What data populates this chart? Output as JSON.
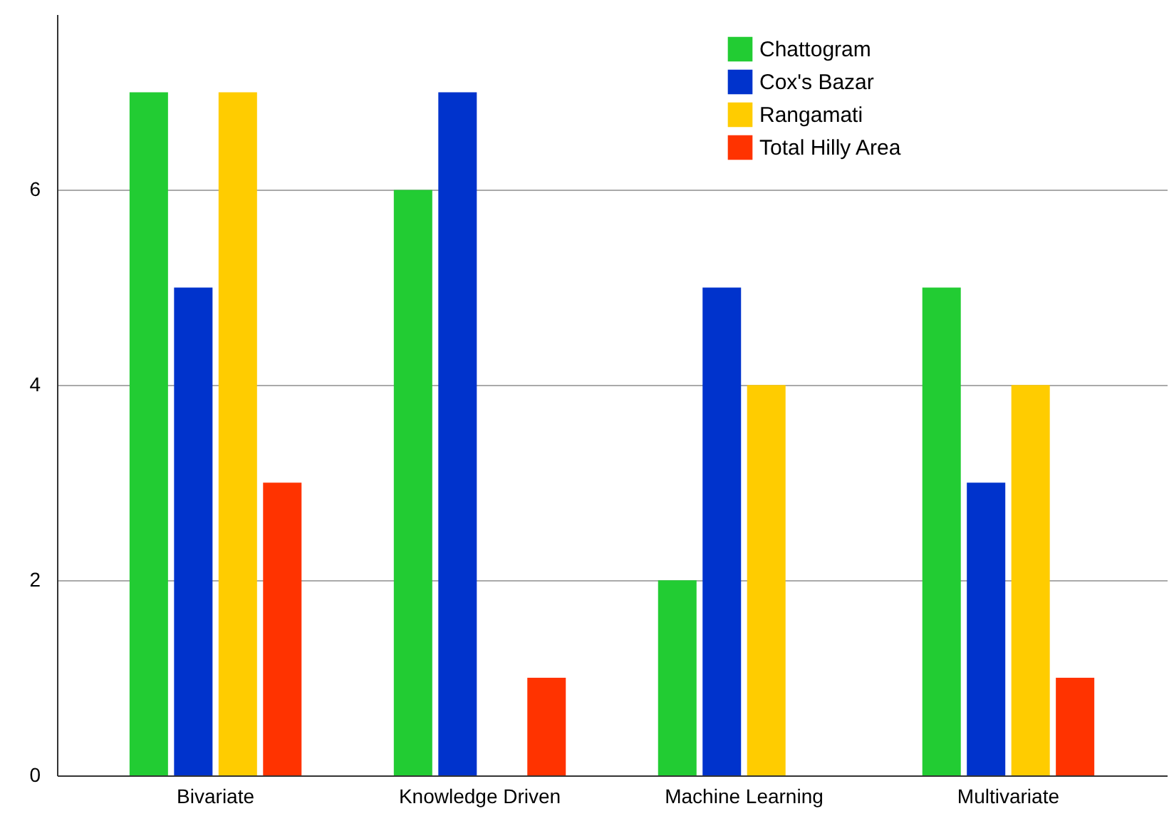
{
  "chart_data": {
    "type": "bar",
    "categories": [
      "Bivariate",
      "Knowledge Driven",
      "Machine Learning",
      "Multivariate"
    ],
    "series": [
      {
        "name": "Chattogram",
        "color": "#22cc33",
        "values": [
          7,
          6,
          2,
          5
        ]
      },
      {
        "name": "Cox's Bazar",
        "color": "#0033cc",
        "values": [
          5,
          7,
          5,
          3
        ]
      },
      {
        "name": "Rangamati",
        "color": "#ffcc00",
        "values": [
          7,
          null,
          4,
          4
        ]
      },
      {
        "name": "Total Hilly Area",
        "color": "#ff3300",
        "values": [
          3,
          1,
          null,
          1
        ]
      }
    ],
    "ylim": [
      0,
      7.8
    ],
    "yticks": [
      0,
      2,
      4,
      6
    ],
    "grid": "y",
    "legend": "top right"
  }
}
